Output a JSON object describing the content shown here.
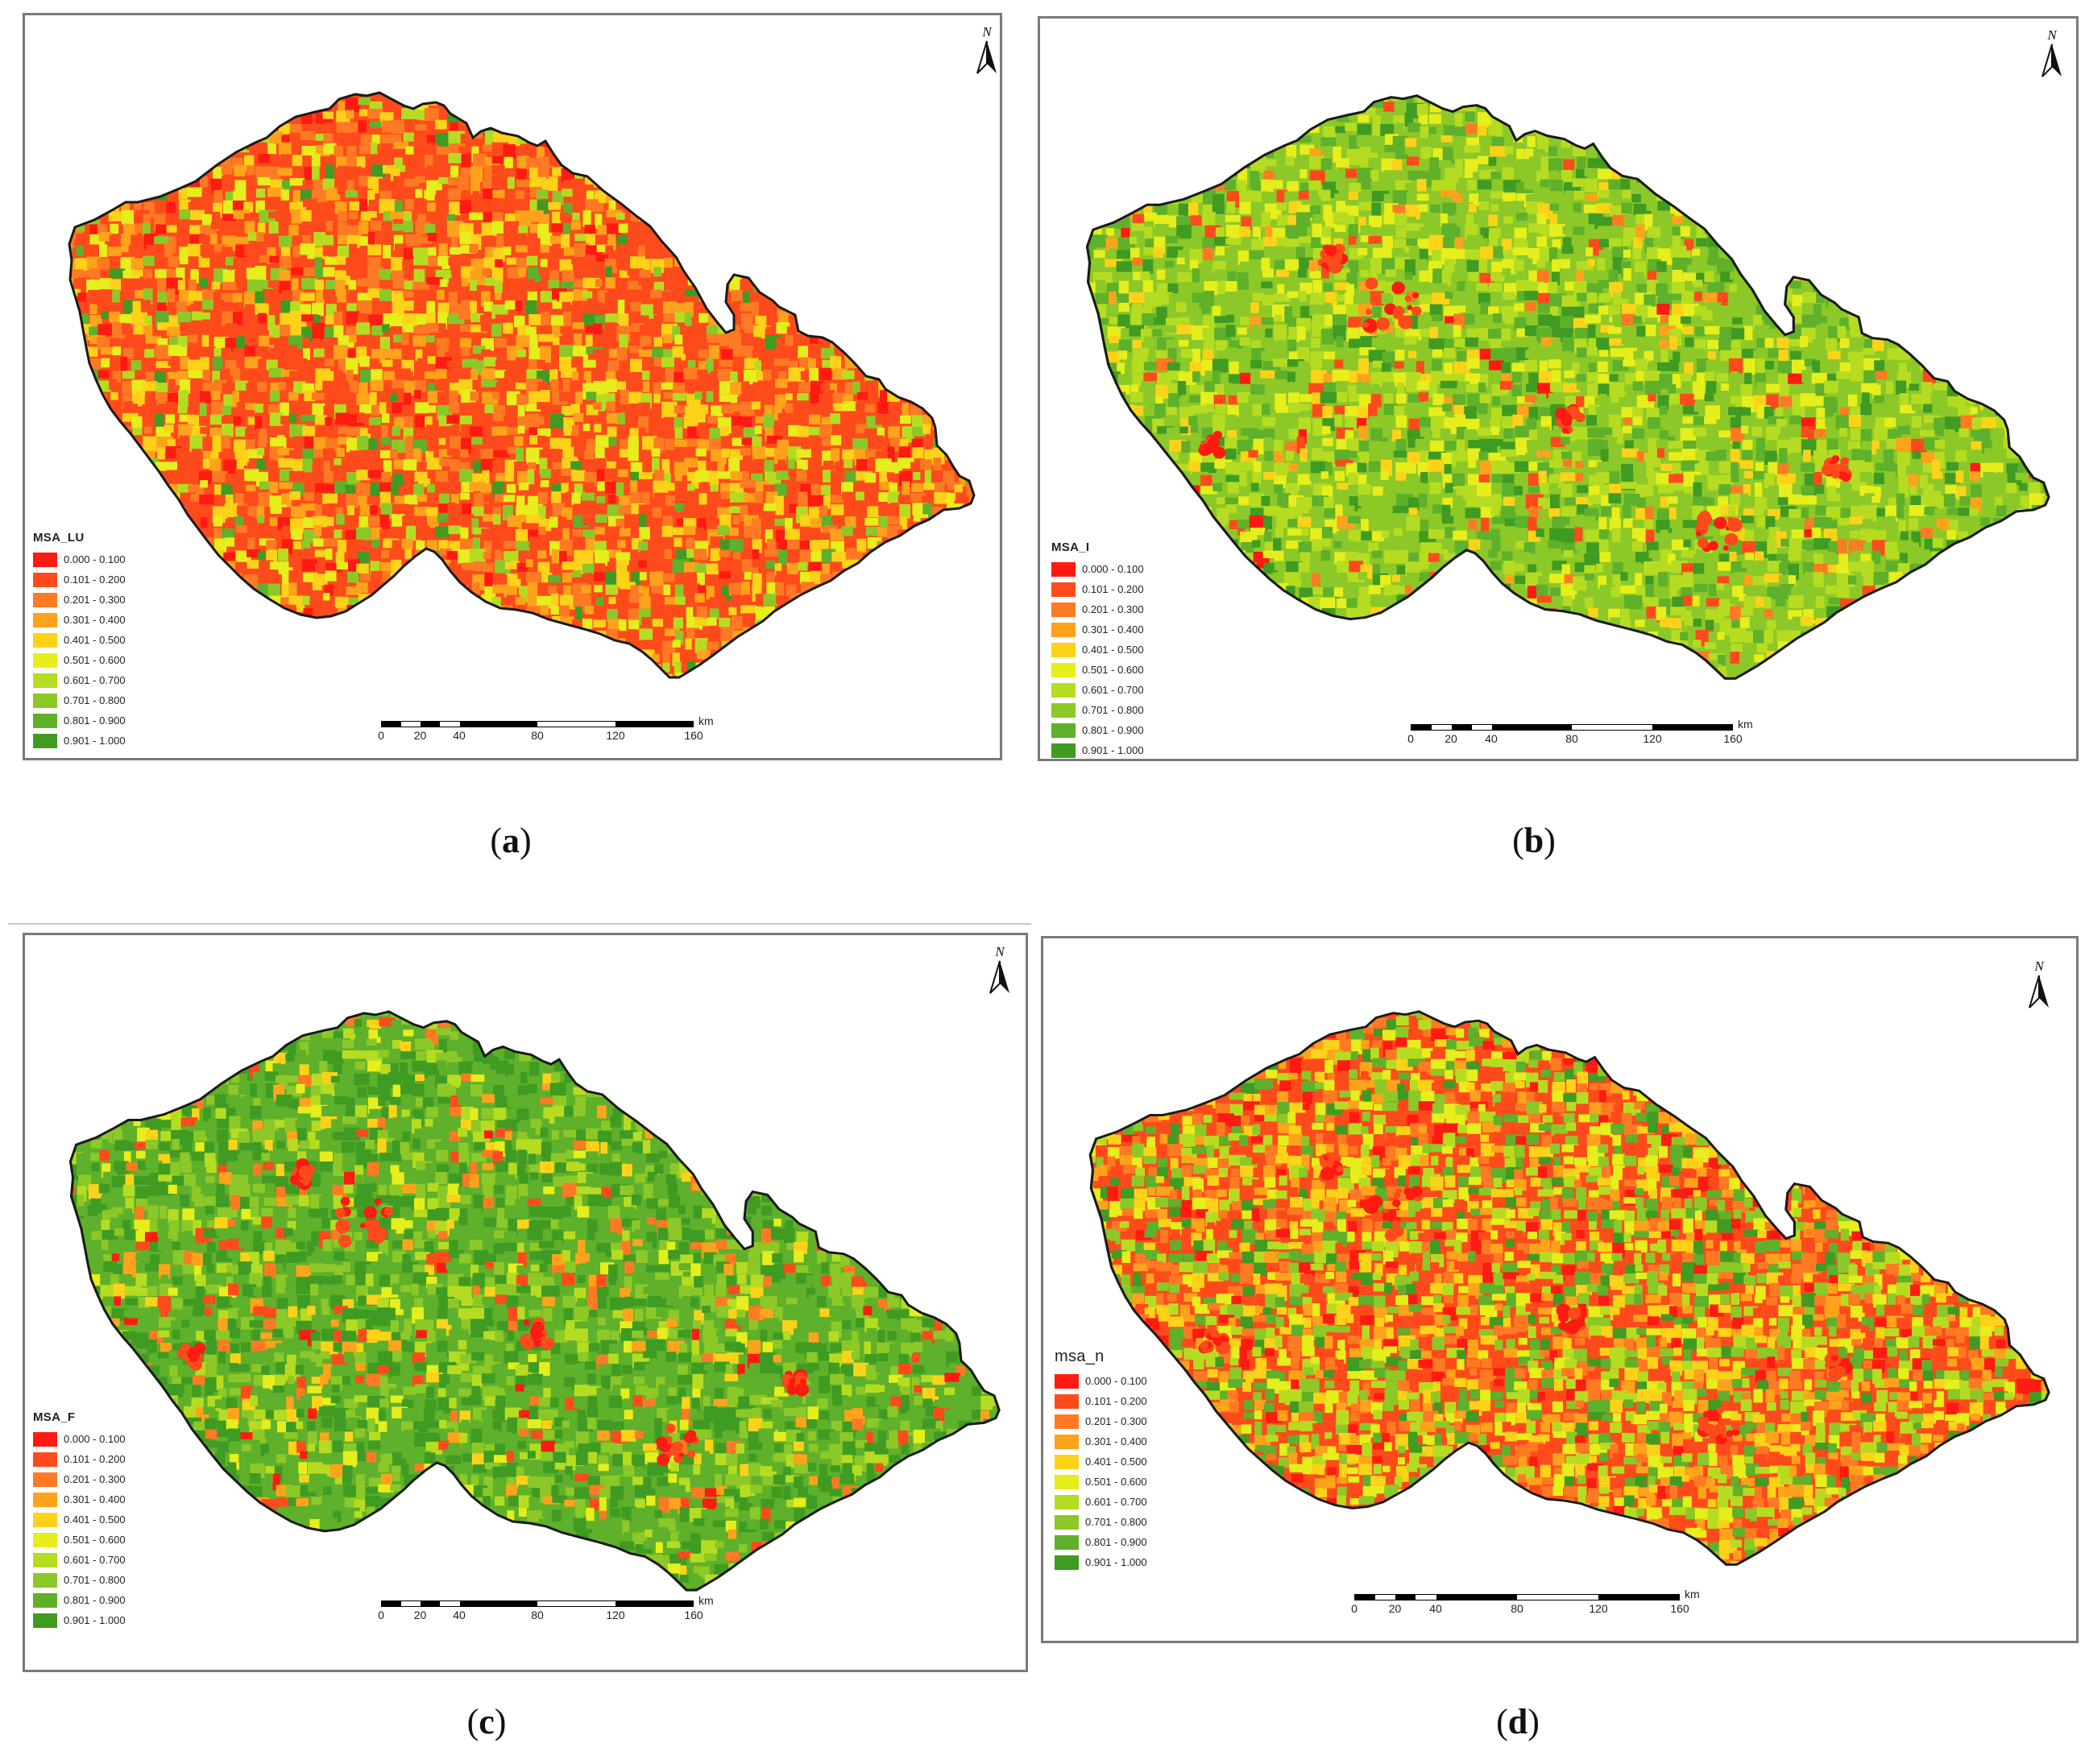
{
  "north_label": "N",
  "scale": {
    "ticks": [
      "0",
      "20",
      "40",
      "80",
      "120",
      "160"
    ],
    "unit": "km"
  },
  "legend_classes": [
    {
      "label": "0.000 - 0.100",
      "color": "#ff1a12"
    },
    {
      "label": "0.101 - 0.200",
      "color": "#ff4a1c"
    },
    {
      "label": "0.201 - 0.300",
      "color": "#ff7a22"
    },
    {
      "label": "0.301 - 0.400",
      "color": "#ffa21c"
    },
    {
      "label": "0.401 - 0.500",
      "color": "#ffd21a"
    },
    {
      "label": "0.501 - 0.600",
      "color": "#e6ee1c"
    },
    {
      "label": "0.601 - 0.700",
      "color": "#b6dc22"
    },
    {
      "label": "0.701 - 0.800",
      "color": "#8cc828"
    },
    {
      "label": "0.801 - 0.900",
      "color": "#5fb02a"
    },
    {
      "label": "0.901 - 1.000",
      "color": "#3f9b22"
    }
  ],
  "panels": [
    {
      "id": "a",
      "legend_title": "MSA_LU",
      "caption_letter": "a",
      "weights": [
        0.06,
        0.3,
        0.16,
        0.1,
        0.12,
        0.1,
        0.06,
        0.05,
        0.03,
        0.02
      ]
    },
    {
      "id": "b",
      "legend_title": "MSA_I",
      "caption_letter": "b",
      "weights": [
        0.01,
        0.03,
        0.02,
        0.02,
        0.05,
        0.13,
        0.24,
        0.26,
        0.14,
        0.1
      ]
    },
    {
      "id": "c",
      "legend_title": "MSA_F",
      "caption_letter": "c",
      "weights": [
        0.01,
        0.03,
        0.03,
        0.03,
        0.03,
        0.04,
        0.09,
        0.2,
        0.28,
        0.26
      ]
    },
    {
      "id": "d",
      "legend_title": "msa_n",
      "caption_letter": "d",
      "weights": [
        0.06,
        0.13,
        0.12,
        0.09,
        0.11,
        0.13,
        0.12,
        0.1,
        0.08,
        0.06
      ]
    }
  ]
}
